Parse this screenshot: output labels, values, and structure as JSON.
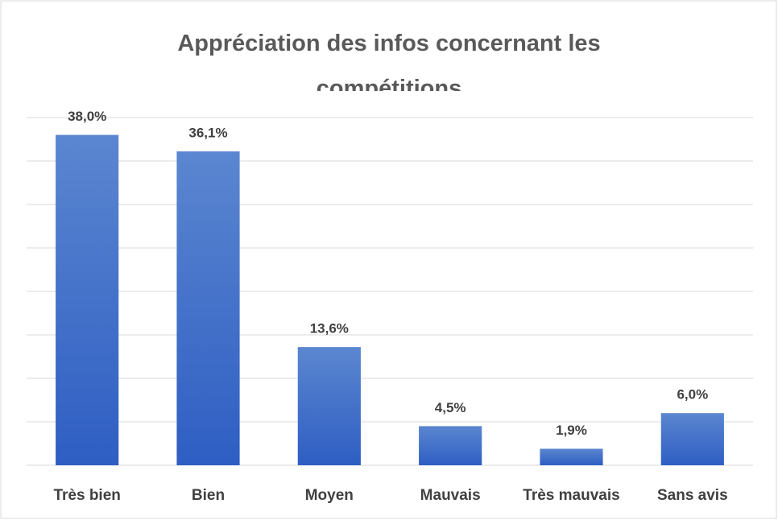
{
  "chart_data": {
    "type": "bar",
    "title": "Appréciation des infos concernant les compétitions",
    "categories": [
      "Très bien",
      "Bien",
      "Moyen",
      "Mauvais",
      "Très mauvais",
      "Sans avis"
    ],
    "values": [
      38.0,
      36.1,
      13.6,
      4.5,
      1.9,
      6.0
    ],
    "value_labels": [
      "38,0%",
      "36,1%",
      "13,6%",
      "4,5%",
      "1,9%",
      "6,0%"
    ],
    "color": "#4472c4",
    "ylim": [
      0,
      40
    ],
    "yticks": [
      0,
      5,
      10,
      15,
      20,
      25,
      30,
      35,
      40
    ],
    "grid": true
  }
}
